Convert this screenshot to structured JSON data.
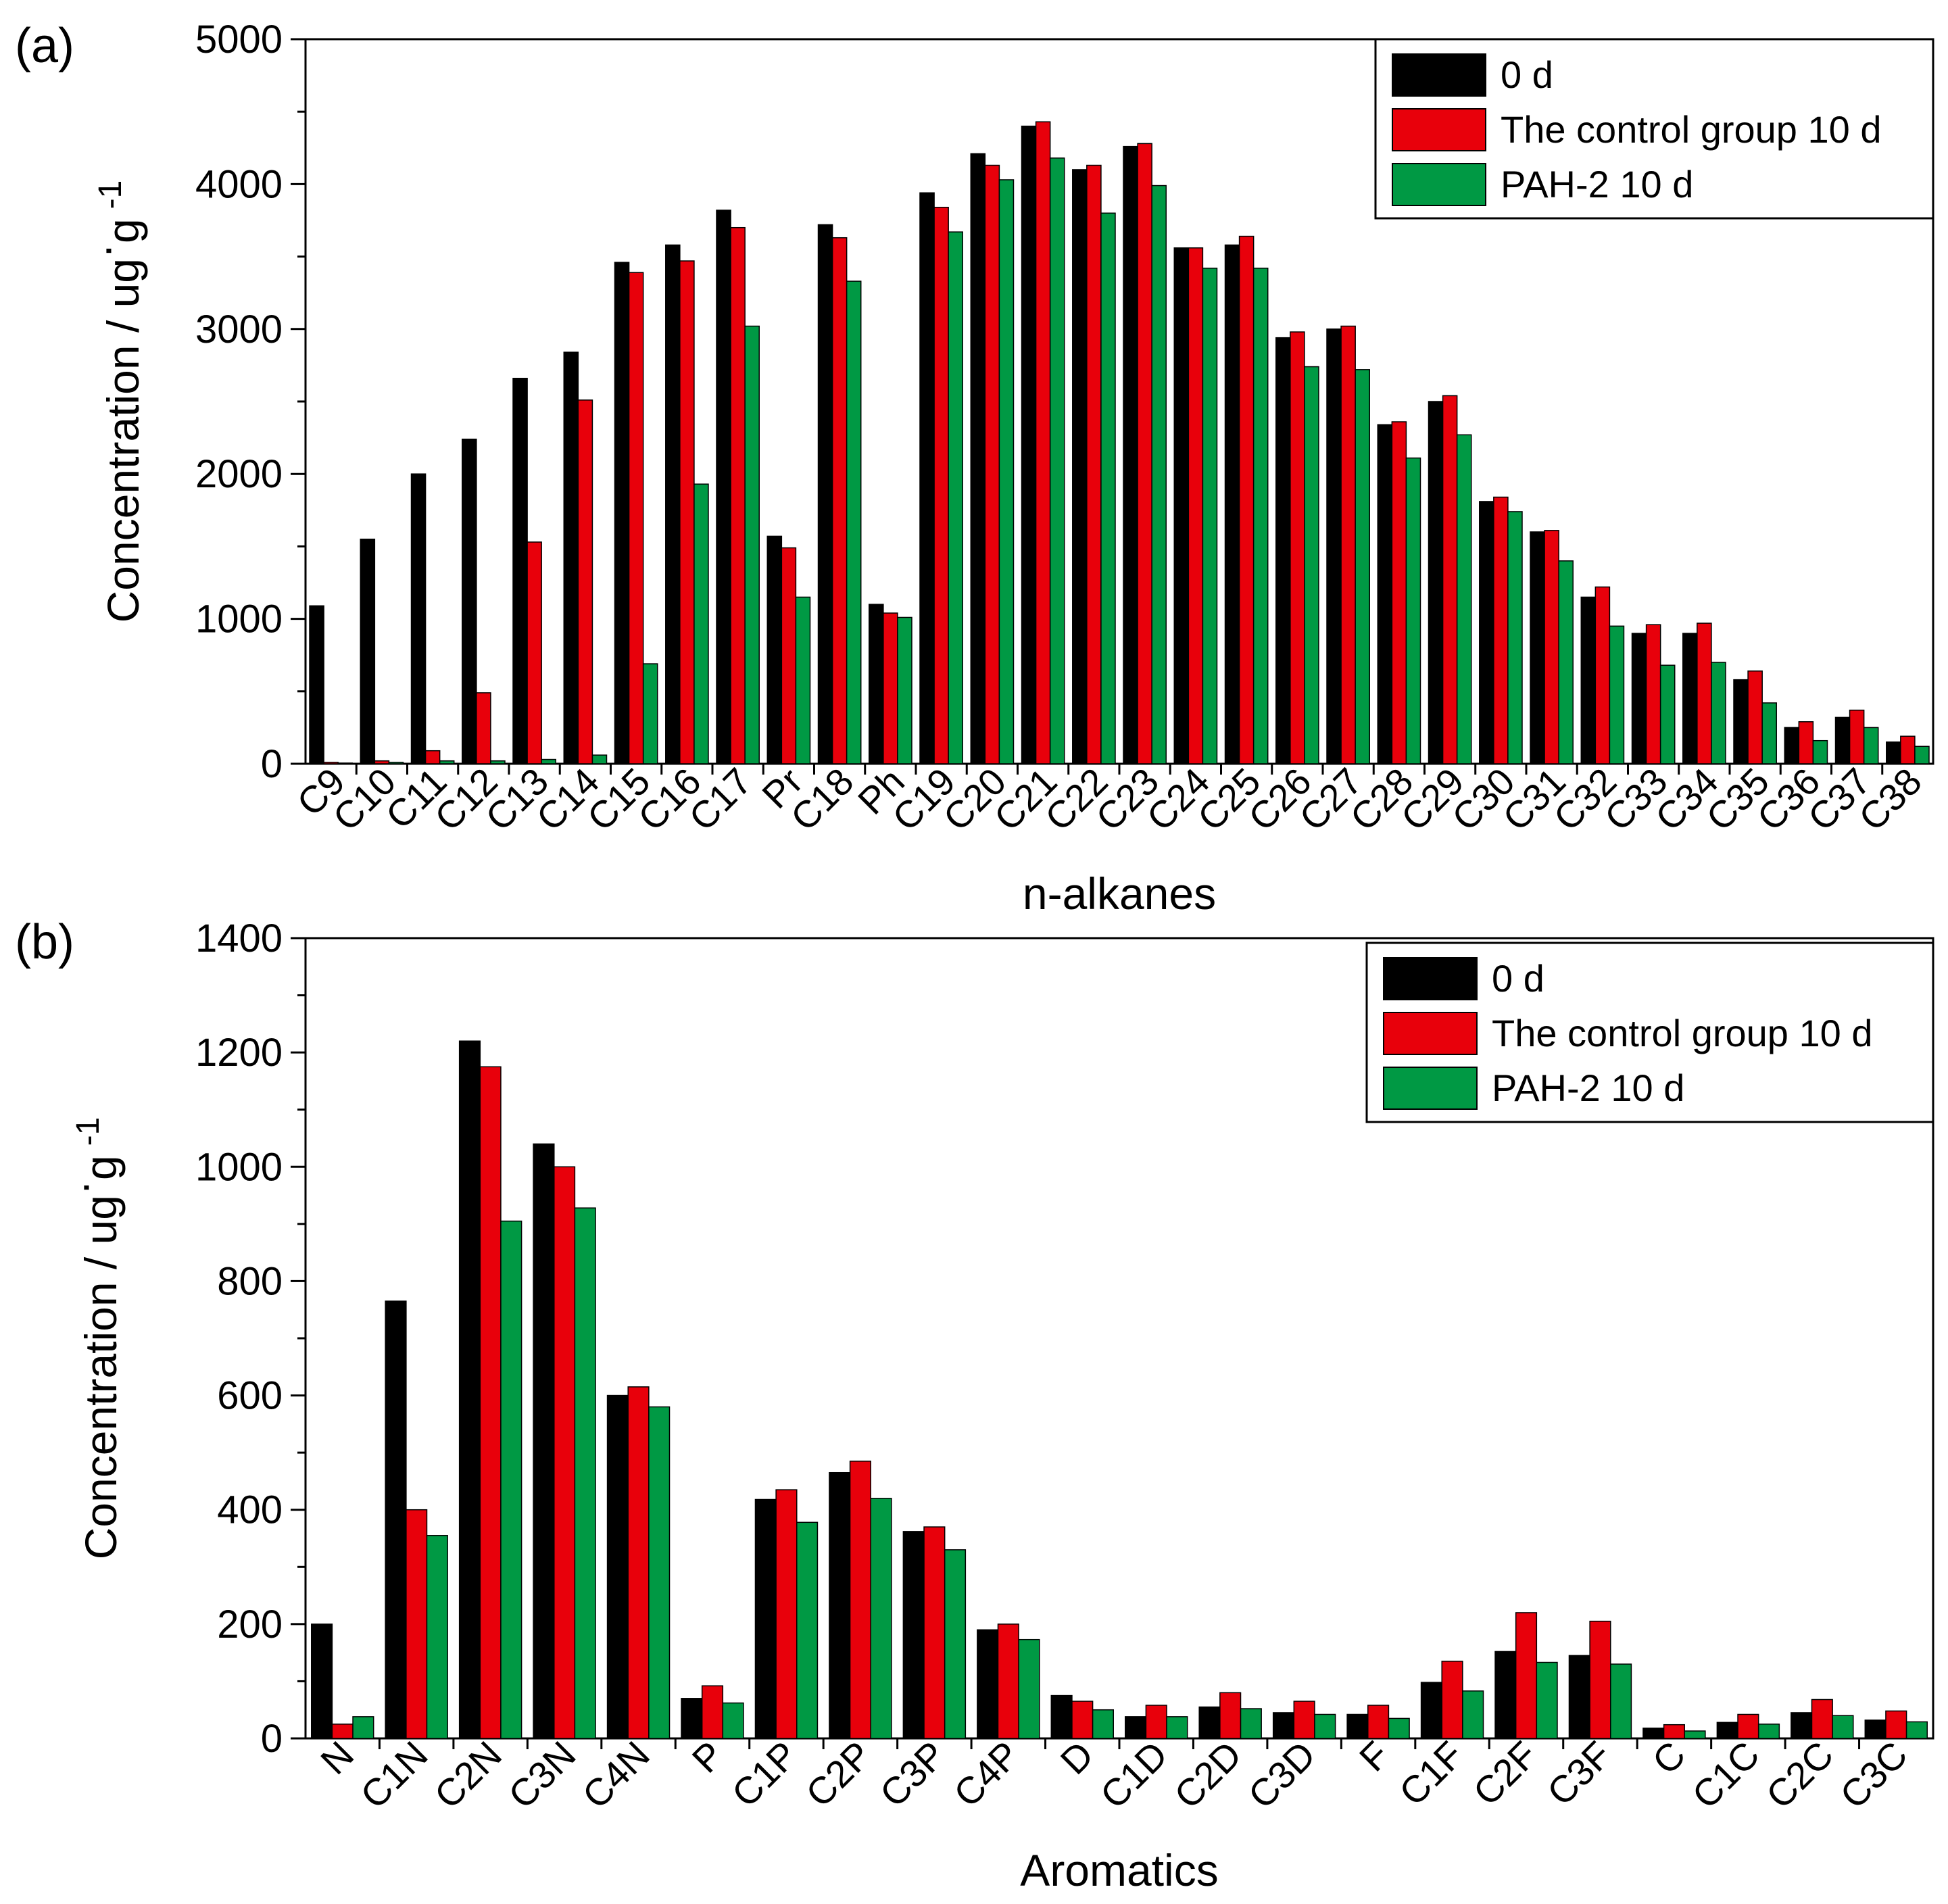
{
  "chart_data": [
    {
      "panel_label": "(a)",
      "type": "bar",
      "xlabel": "n-alkanes",
      "ylabel": "Concentration / ug",
      "ylabel_dot": "·",
      "ylabel_unit": "g",
      "ylabel_exp": "-1",
      "ylim": [
        0,
        5000
      ],
      "yticks": [
        0,
        1000,
        2000,
        3000,
        4000,
        5000
      ],
      "tick_labels": [
        "0",
        "1000",
        "2000",
        "3000",
        "4000",
        "5000"
      ],
      "legend_position": "top-right",
      "categories": [
        "C9",
        "C10",
        "C11",
        "C12",
        "C13",
        "C14",
        "C15",
        "C16",
        "C17",
        "Pr",
        "C18",
        "Ph",
        "C19",
        "C20",
        "C21",
        "C22",
        "C23",
        "C24",
        "C25",
        "C26",
        "C27",
        "C28",
        "C29",
        "C30",
        "C31",
        "C32",
        "C33",
        "C34",
        "C35",
        "C36",
        "C37",
        "C38"
      ],
      "series": [
        {
          "name": "0 d",
          "color": "#000000",
          "values": [
            1090,
            1550,
            2000,
            2240,
            2660,
            2840,
            3460,
            3580,
            3820,
            1570,
            3720,
            1100,
            3940,
            4210,
            4400,
            4100,
            4260,
            3560,
            3580,
            2940,
            3000,
            2340,
            2500,
            1810,
            1600,
            1150,
            900,
            900,
            580,
            250,
            320,
            150
          ]
        },
        {
          "name": "The control group 10 d",
          "color": "#e8000b",
          "values": [
            10,
            20,
            90,
            490,
            1530,
            2510,
            3390,
            3470,
            3700,
            1490,
            3630,
            1040,
            3840,
            4130,
            4430,
            4130,
            4280,
            3560,
            3640,
            2980,
            3020,
            2360,
            2540,
            1840,
            1610,
            1220,
            960,
            970,
            640,
            290,
            370,
            190
          ]
        },
        {
          "name": "PAH-2 10 d",
          "color": "#009944",
          "values": [
            5,
            10,
            20,
            20,
            30,
            60,
            690,
            1930,
            3020,
            1150,
            3330,
            1010,
            3670,
            4030,
            4180,
            3800,
            3990,
            3420,
            3420,
            2740,
            2720,
            2110,
            2270,
            1740,
            1400,
            950,
            680,
            700,
            420,
            160,
            250,
            120
          ]
        }
      ]
    },
    {
      "panel_label": "(b)",
      "type": "bar",
      "xlabel": "Aromatics",
      "ylabel": "Concentration / ug",
      "ylabel_dot": "·",
      "ylabel_unit": "g",
      "ylabel_exp": "-1",
      "ylim": [
        0,
        1400
      ],
      "yticks": [
        0,
        200,
        400,
        600,
        800,
        1000,
        1200,
        1400
      ],
      "tick_labels": [
        "0",
        "200",
        "400",
        "600",
        "800",
        "1000",
        "1200",
        "1400"
      ],
      "legend_position": "top-right",
      "categories": [
        "N",
        "C1N",
        "C2N",
        "C3N",
        "C4N",
        "P",
        "C1P",
        "C2P",
        "C3P",
        "C4P",
        "D",
        "C1D",
        "C2D",
        "C3D",
        "F",
        "C1F",
        "C2F",
        "C3F",
        "C",
        "C1C",
        "C2C",
        "C3C"
      ],
      "series": [
        {
          "name": "0 d",
          "color": "#000000",
          "values": [
            200,
            765,
            1220,
            1040,
            600,
            70,
            418,
            465,
            362,
            190,
            75,
            38,
            55,
            45,
            42,
            98,
            152,
            145,
            18,
            28,
            45,
            32
          ]
        },
        {
          "name": "The control group 10 d",
          "color": "#e8000b",
          "values": [
            25,
            400,
            1175,
            1000,
            615,
            92,
            435,
            485,
            370,
            200,
            65,
            58,
            80,
            65,
            58,
            135,
            220,
            205,
            24,
            42,
            68,
            48
          ]
        },
        {
          "name": "PAH-2 10 d",
          "color": "#009944",
          "values": [
            38,
            355,
            905,
            928,
            580,
            62,
            378,
            420,
            330,
            173,
            50,
            38,
            52,
            42,
            35,
            83,
            133,
            130,
            13,
            25,
            40,
            29
          ]
        }
      ]
    }
  ]
}
